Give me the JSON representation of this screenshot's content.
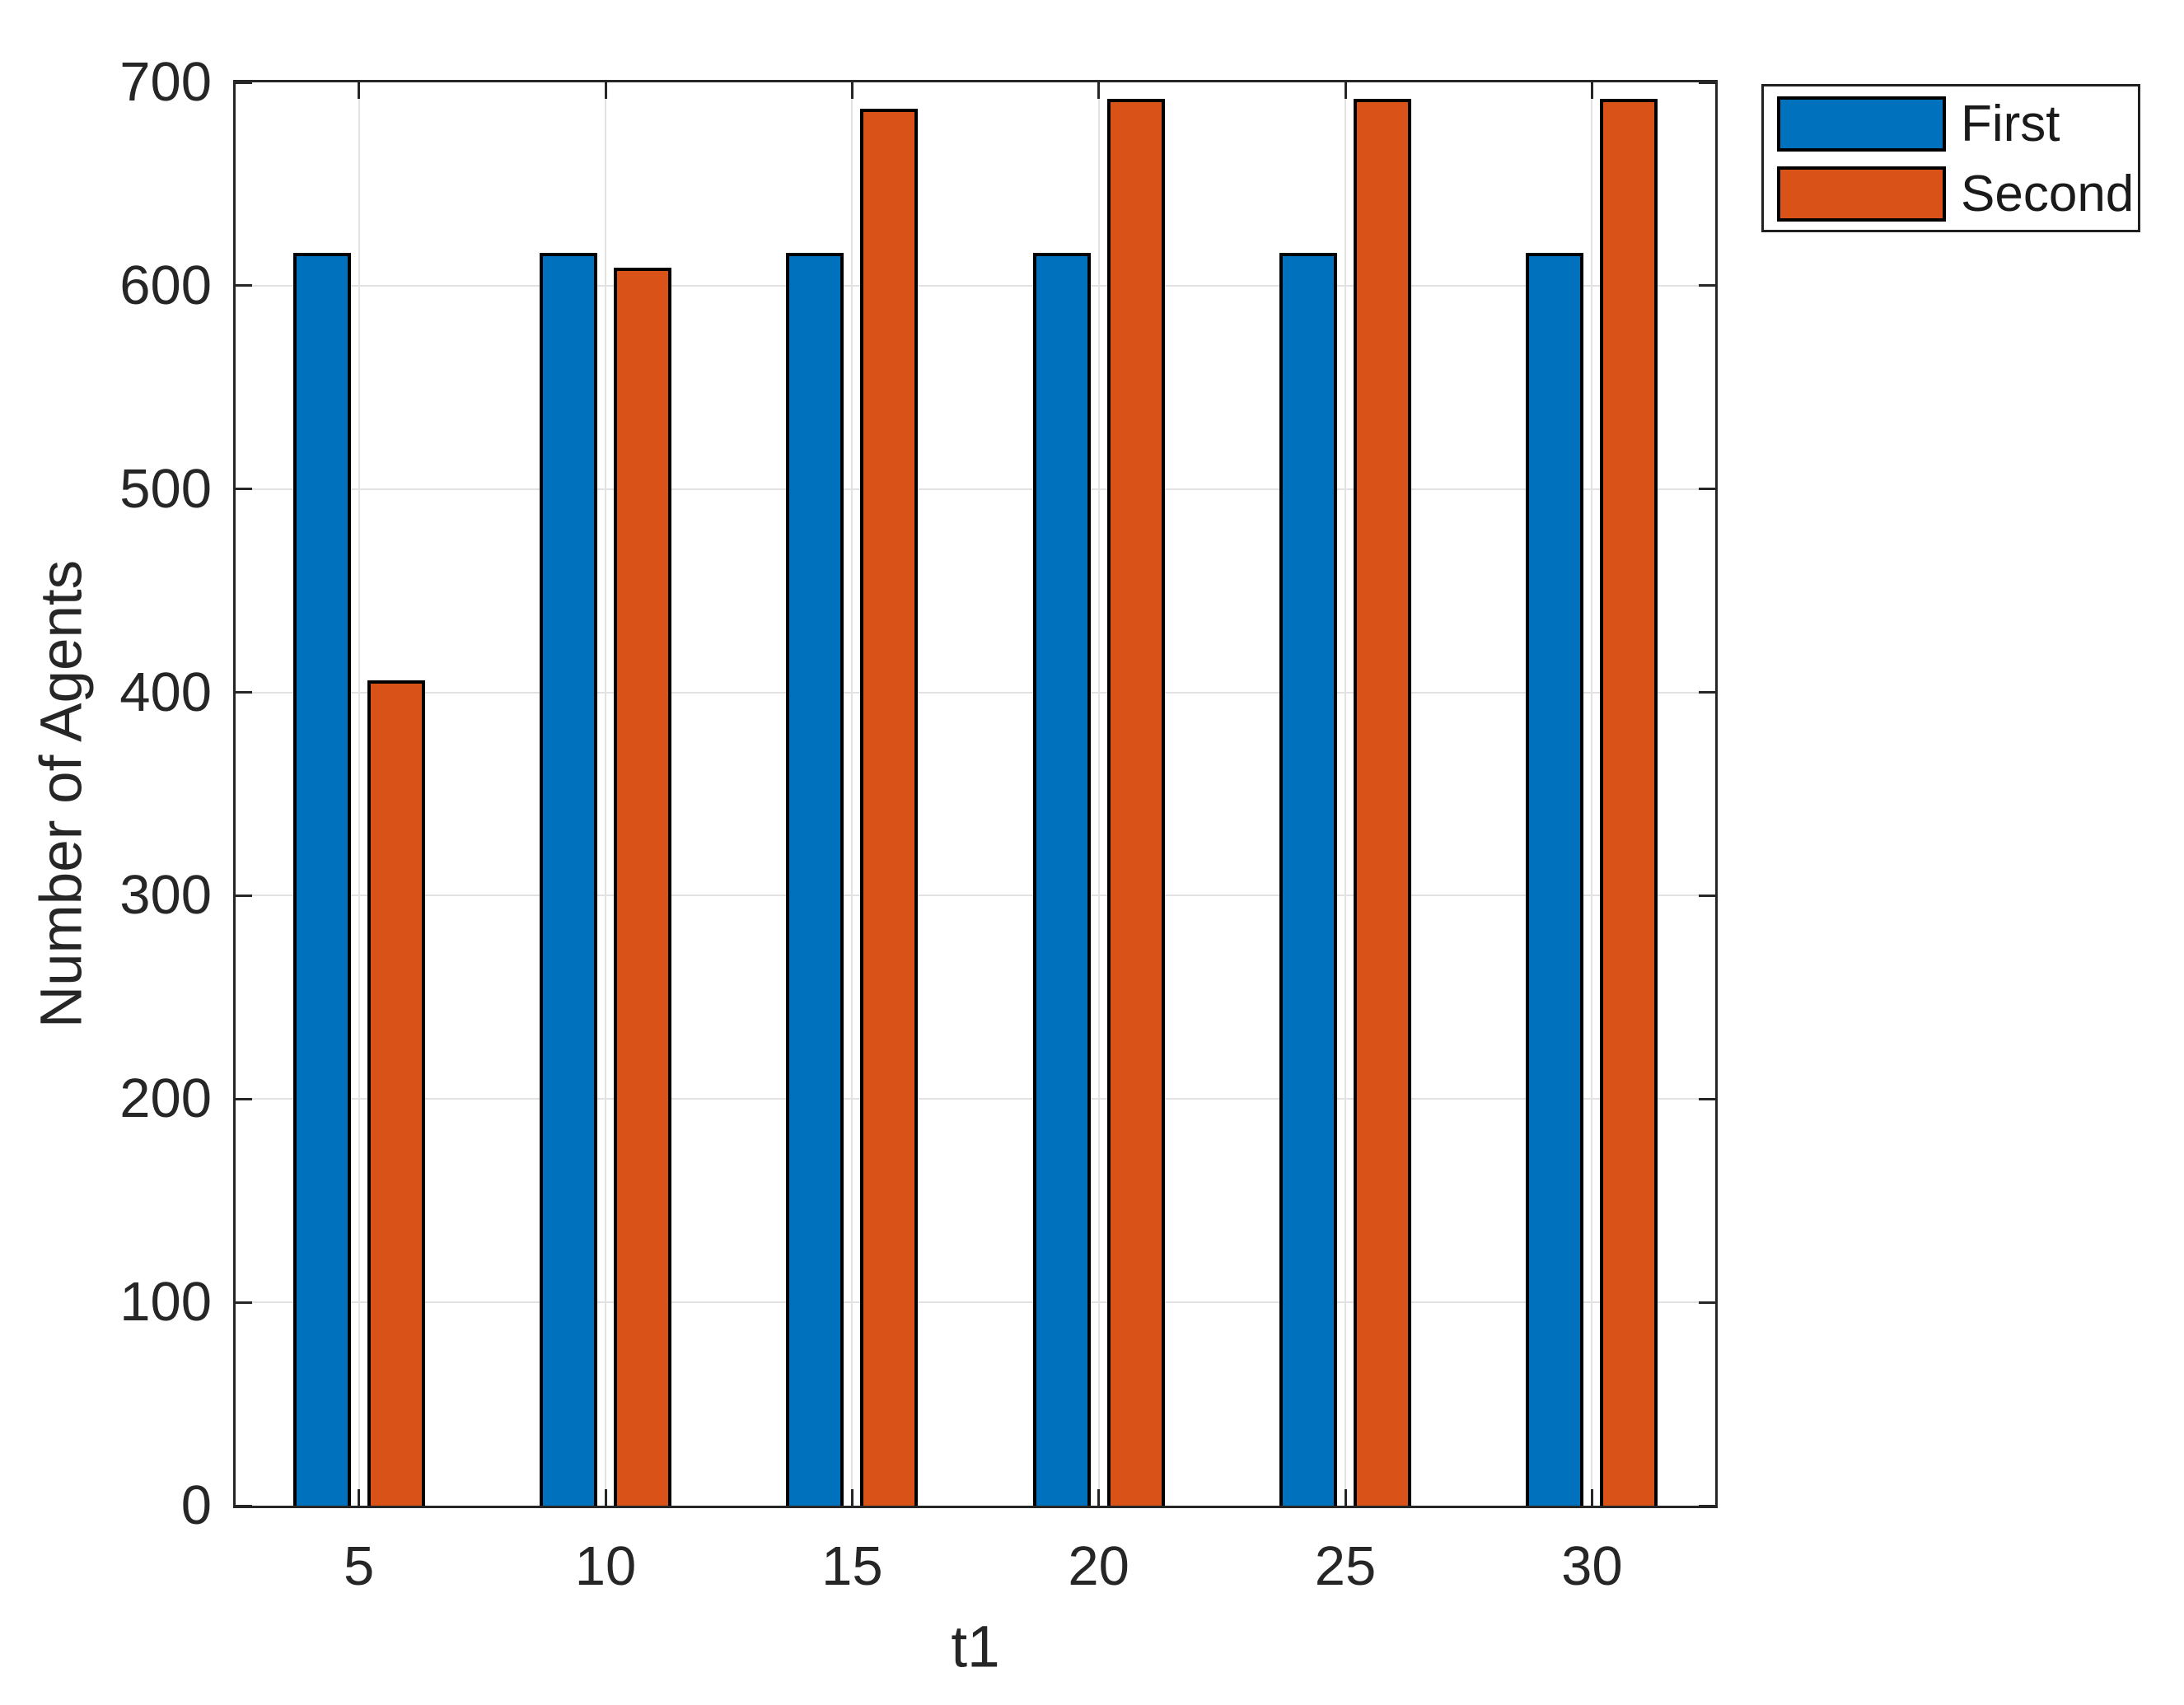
{
  "chart_data": {
    "type": "bar",
    "title": "",
    "xlabel": "t1",
    "ylabel": "Number of Agents",
    "categories": [
      5,
      10,
      15,
      20,
      25,
      30
    ],
    "series": [
      {
        "name": "First",
        "color": "#0072BD",
        "values": [
          616,
          616,
          616,
          616,
          616,
          616
        ]
      },
      {
        "name": "Second",
        "color": "#D95319",
        "values": [
          406,
          609,
          687,
          692,
          692,
          692
        ]
      }
    ],
    "xlim": [
      2.5,
      32.5
    ],
    "ylim": [
      0,
      700
    ],
    "yticks": [
      0,
      100,
      200,
      300,
      400,
      500,
      600,
      700
    ],
    "grid": true,
    "legend": {
      "position": "outside-top-right",
      "labels": [
        "First",
        "Second"
      ]
    },
    "colors": {
      "axis": "#262626",
      "grid": "#e2e2e2",
      "bar_edge": "#000000",
      "background": "#ffffff"
    }
  }
}
